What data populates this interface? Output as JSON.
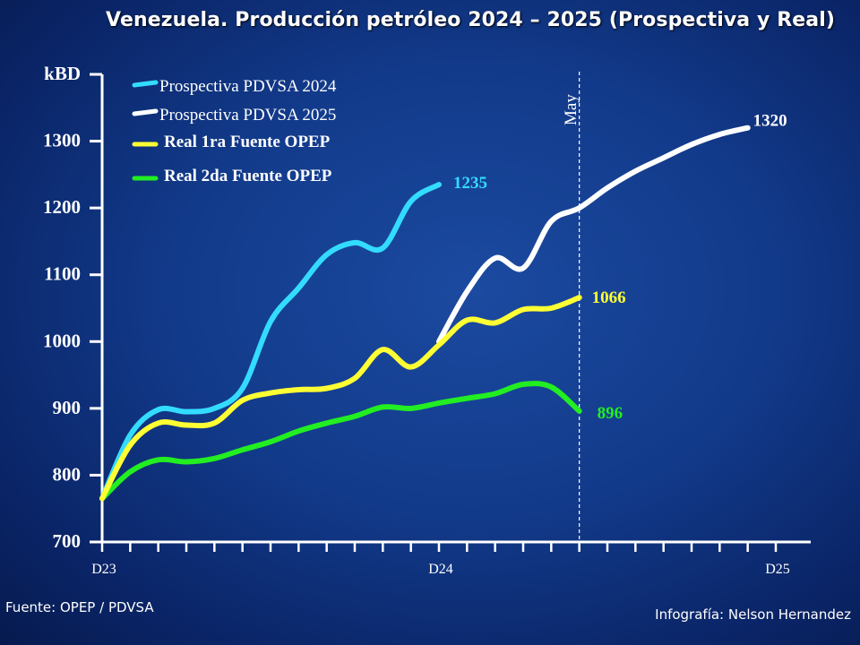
{
  "header": {
    "title": "Venezuela.  Producción petróleo 2024 – 2025 (Prospectiva y Real)"
  },
  "footer": {
    "source": "Fuente: OPEP / PDVSA",
    "credit": "Infografía: Nelson Hernandez"
  },
  "chart_data": {
    "type": "line",
    "title": "Venezuela.  Producción petróleo 2024 – 2025 (Prospectiva y Real)",
    "ylabel": "kBD",
    "xlabel": "",
    "ylim": [
      700,
      1400
    ],
    "xlim": [
      0,
      24
    ],
    "y_ticks": [
      {
        "v": 700,
        "label": "700"
      },
      {
        "v": 800,
        "label": "800"
      },
      {
        "v": 900,
        "label": "900"
      },
      {
        "v": 1000,
        "label": "1000"
      },
      {
        "v": 1100,
        "label": "1100"
      },
      {
        "v": 1200,
        "label": "1200"
      },
      {
        "v": 1300,
        "label": "1300"
      },
      {
        "v": 1400,
        "label": "kBD"
      }
    ],
    "x_ticks_count": 24,
    "x_labels": [
      {
        "x": 0,
        "label": "D23"
      },
      {
        "x": 12,
        "label": "D24"
      },
      {
        "x": 24,
        "label": "D25"
      }
    ],
    "marker": {
      "x": 17,
      "label": "May"
    },
    "series": [
      {
        "name": "Prospectiva PDVSA 2024",
        "color": "#33dcff",
        "points": [
          [
            0,
            765
          ],
          [
            1,
            860
          ],
          [
            2,
            898
          ],
          [
            3,
            895
          ],
          [
            4,
            900
          ],
          [
            5,
            930
          ],
          [
            6,
            1030
          ],
          [
            7,
            1080
          ],
          [
            8,
            1130
          ],
          [
            9,
            1148
          ],
          [
            10,
            1140
          ],
          [
            11,
            1210
          ],
          [
            12,
            1235
          ]
        ],
        "end_label": "1235"
      },
      {
        "name": "Prospectiva PDVSA 2025",
        "color": "#ffffff",
        "points": [
          [
            12,
            1000
          ],
          [
            13,
            1075
          ],
          [
            14,
            1125
          ],
          [
            15,
            1110
          ],
          [
            16,
            1180
          ],
          [
            17,
            1200
          ],
          [
            18,
            1230
          ],
          [
            19,
            1255
          ],
          [
            20,
            1275
          ],
          [
            21,
            1295
          ],
          [
            22,
            1310
          ],
          [
            23,
            1320
          ]
        ],
        "end_label": "1320"
      },
      {
        "name": "Real 1ra Fuente OPEP",
        "color": "#ffff33",
        "points": [
          [
            0,
            765
          ],
          [
            1,
            845
          ],
          [
            2,
            878
          ],
          [
            3,
            875
          ],
          [
            4,
            878
          ],
          [
            5,
            912
          ],
          [
            6,
            923
          ],
          [
            7,
            928
          ],
          [
            8,
            930
          ],
          [
            9,
            945
          ],
          [
            10,
            988
          ],
          [
            11,
            962
          ],
          [
            12,
            995
          ],
          [
            13,
            1032
          ],
          [
            14,
            1028
          ],
          [
            15,
            1048
          ],
          [
            16,
            1050
          ],
          [
            17,
            1066
          ]
        ],
        "end_label": "1066"
      },
      {
        "name": "Real 2da  Fuente OPEP",
        "color": "#22ee22",
        "points": [
          [
            0,
            765
          ],
          [
            1,
            805
          ],
          [
            2,
            823
          ],
          [
            3,
            820
          ],
          [
            4,
            825
          ],
          [
            5,
            838
          ],
          [
            6,
            850
          ],
          [
            7,
            866
          ],
          [
            8,
            878
          ],
          [
            9,
            888
          ],
          [
            10,
            902
          ],
          [
            11,
            900
          ],
          [
            12,
            908
          ],
          [
            13,
            915
          ],
          [
            14,
            922
          ],
          [
            15,
            936
          ],
          [
            16,
            932
          ],
          [
            17,
            896
          ]
        ],
        "end_label": "896"
      }
    ]
  }
}
